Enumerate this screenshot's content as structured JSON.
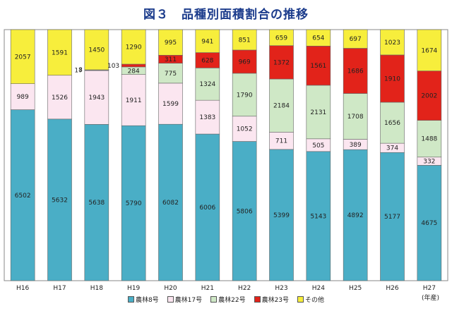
{
  "title": "図３　品種別面積割合の推移",
  "unit_label": "(年産)",
  "chart_data": {
    "type": "bar",
    "stacked": true,
    "normalized": true,
    "title": "図３　品種別面積割合の推移",
    "categories": [
      "H16",
      "H17",
      "H18",
      "H19",
      "H20",
      "H21",
      "H22",
      "H23",
      "H24",
      "H25",
      "H26",
      "H27"
    ],
    "series": [
      {
        "name": "農林8号",
        "color": "#4aaec6",
        "values": [
          6502,
          5632,
          5638,
          5790,
          6082,
          6006,
          5806,
          5399,
          5143,
          4892,
          5177,
          4675
        ]
      },
      {
        "name": "農林17号",
        "color": "#fbe6f0",
        "values": [
          989,
          1526,
          1943,
          1911,
          1599,
          1383,
          1052,
          711,
          505,
          389,
          374,
          332
        ]
      },
      {
        "name": "農林22号",
        "color": "#cfe8c6",
        "values": [
          0,
          0,
          17,
          284,
          775,
          1324,
          1790,
          2184,
          2131,
          1708,
          1656,
          1488
        ]
      },
      {
        "name": "農林23号",
        "color": "#e2231a",
        "values": [
          0,
          0,
          8,
          103,
          311,
          628,
          969,
          1372,
          1561,
          1686,
          1910,
          2002
        ]
      },
      {
        "name": "その他",
        "color": "#f7ee3c",
        "values": [
          2057,
          1591,
          1450,
          1290,
          995,
          941,
          851,
          659,
          654,
          697,
          1023,
          1674
        ]
      }
    ],
    "xlabel": "",
    "ylabel": "",
    "ylim": [
      0,
      100
    ],
    "legend": "bottom",
    "grid": false
  }
}
